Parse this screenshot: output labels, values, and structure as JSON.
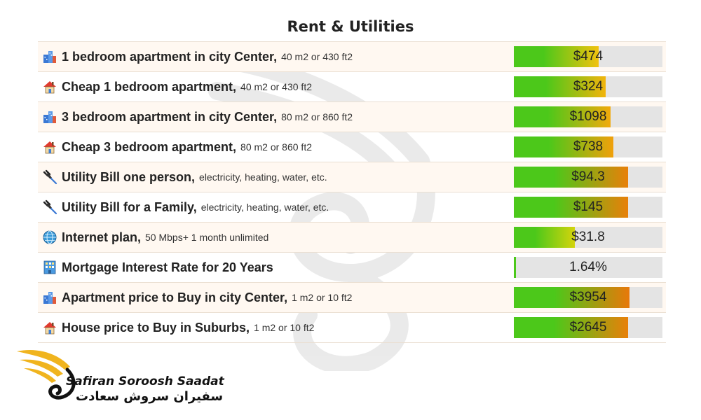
{
  "chart_data": {
    "type": "bar",
    "title": "Rent & Utilities",
    "rows": [
      {
        "icon": "city-building-icon",
        "label": "1 bedroom apartment in city Center,",
        "detail": "40 m2 or 430 ft2",
        "value_text": "$474",
        "fill": 0.57,
        "colors": [
          "#4cc81a",
          "#f2c20d"
        ]
      },
      {
        "icon": "house-icon",
        "label": "Cheap 1 bedroom apartment,",
        "detail": "40 m2 or 430 ft2",
        "value_text": "$324",
        "fill": 0.62,
        "colors": [
          "#4cc81a",
          "#f2b40c"
        ]
      },
      {
        "icon": "city-building-icon",
        "label": "3 bedroom apartment in city Center,",
        "detail": "80 m2 or 860 ft2",
        "value_text": "$1098",
        "fill": 0.65,
        "colors": [
          "#4cc81a",
          "#f2aa0c"
        ]
      },
      {
        "icon": "house-icon",
        "label": "Cheap 3 bedroom apartment,",
        "detail": "80 m2 or 860 ft2",
        "value_text": "$738",
        "fill": 0.67,
        "colors": [
          "#4cc81a",
          "#f0a00b"
        ]
      },
      {
        "icon": "plug-icon",
        "label": "Utility Bill one person,",
        "detail": "electricity, heating, water, etc.",
        "value_text": "$94.3",
        "fill": 0.77,
        "colors": [
          "#4cc81a",
          "#e8800a"
        ]
      },
      {
        "icon": "plug-icon",
        "label": "Utility Bill for a Family,",
        "detail": "electricity, heating, water, etc.",
        "value_text": "$145",
        "fill": 0.77,
        "colors": [
          "#4cc81a",
          "#e8800a"
        ]
      },
      {
        "icon": "globe-icon",
        "label": "Internet plan,",
        "detail": "50 Mbps+ 1 month unlimited",
        "value_text": "$31.8",
        "fill": 0.41,
        "colors": [
          "#4cc81a",
          "#d4d40c"
        ]
      },
      {
        "icon": "office-building-icon",
        "label": "Mortgage Interest Rate for 20 Years",
        "detail": "",
        "value_text": "1.64%",
        "fill": 0.012,
        "colors": [
          "#4cc81a",
          "#4cc81a"
        ]
      },
      {
        "icon": "city-building-icon",
        "label": "Apartment price to Buy in city Center,",
        "detail": "1 m2 or 10 ft2",
        "value_text": "$3954",
        "fill": 0.78,
        "colors": [
          "#4cc81a",
          "#e8780a"
        ]
      },
      {
        "icon": "house-icon",
        "label": "House price to Buy in Suburbs,",
        "detail": "1 m2 or 10 ft2",
        "value_text": "$2645",
        "fill": 0.77,
        "colors": [
          "#4cc81a",
          "#e8800a"
        ]
      }
    ],
    "legend": "none",
    "grid": false
  },
  "brand": {
    "name_en": "Safiran Soroosh Saadat",
    "name_fa": "سفیران سروش سعادت",
    "colors": {
      "accent": "#f0b41e",
      "text": "#111111"
    }
  }
}
